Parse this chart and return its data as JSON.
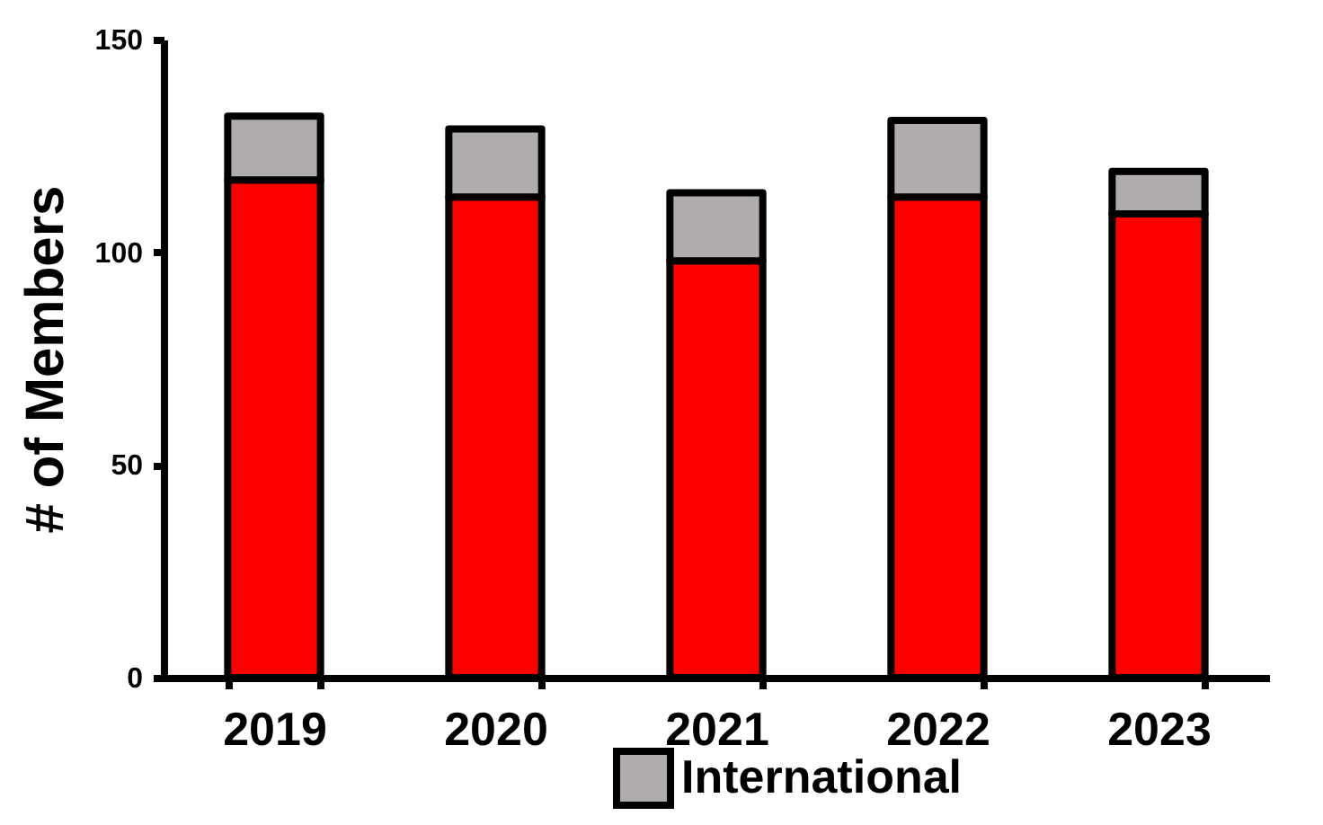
{
  "chart_data": {
    "type": "bar",
    "stacked": true,
    "ylabel": "# of Members",
    "categories": [
      "2019",
      "2020",
      "2021",
      "2022",
      "2023"
    ],
    "series": [
      {
        "color": "#ff0000",
        "values": [
          117,
          113,
          98,
          113,
          109
        ]
      },
      {
        "name": "International",
        "color": "#b0acab",
        "values": [
          15,
          16,
          16,
          18,
          10
        ]
      }
    ],
    "ylim": [
      0,
      150
    ],
    "yticks": [
      0,
      50,
      100,
      150
    ],
    "grid": false,
    "legend": "bottom"
  }
}
